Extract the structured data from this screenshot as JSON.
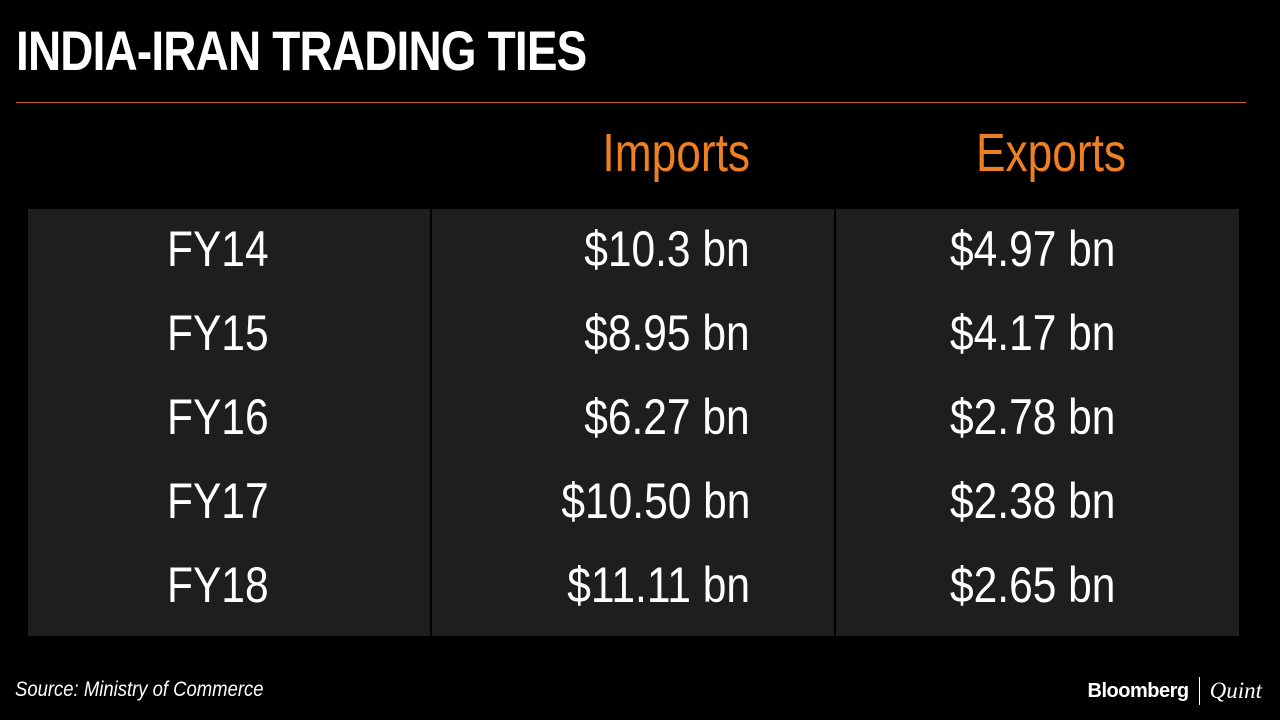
{
  "title": "INDIA-IRAN TRADING TIES",
  "colors": {
    "accent": "#ee7f22",
    "rule": "#c9651c",
    "table_bg": "#1e1e1e",
    "background": "#000000"
  },
  "chart_data": {
    "type": "table",
    "title": "INDIA-IRAN TRADING TIES",
    "columns": [
      "Imports",
      "Exports"
    ],
    "rows": [
      {
        "label": "FY14",
        "imports": "$10.3 bn",
        "exports": "$4.97 bn"
      },
      {
        "label": "FY15",
        "imports": "$8.95 bn",
        "exports": "$4.17 bn"
      },
      {
        "label": "FY16",
        "imports": "$6.27 bn",
        "exports": "$2.78 bn"
      },
      {
        "label": "FY17",
        "imports": "$10.50 bn",
        "exports": "$2.38 bn"
      },
      {
        "label": "FY18",
        "imports": "$11.11 bn",
        "exports": "$2.65 bn"
      }
    ],
    "series": [
      {
        "name": "Imports",
        "values": [
          10.3,
          8.95,
          6.27,
          10.5,
          11.11
        ]
      },
      {
        "name": "Exports",
        "values": [
          4.97,
          4.17,
          2.78,
          2.38,
          2.65
        ]
      }
    ]
  },
  "footer": {
    "source": "Source: Ministry of Commerce",
    "brand_left": "Bloomberg",
    "brand_right": "Quint"
  }
}
